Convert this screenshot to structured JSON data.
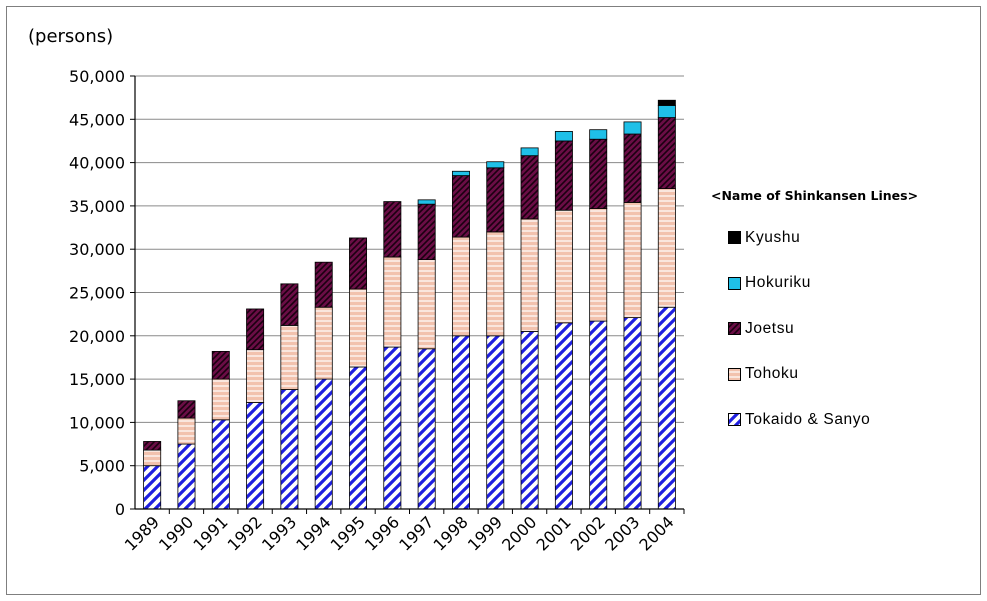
{
  "chart_data": {
    "type": "bar",
    "stacked": true,
    "unit_label": "(persons)",
    "title": "",
    "xlabel": "",
    "ylabel": "",
    "ylim": [
      0,
      50000
    ],
    "yticks": [
      "0",
      "5,000",
      "10,000",
      "15,000",
      "20,000",
      "25,000",
      "30,000",
      "35,000",
      "40,000",
      "45,000",
      "50,000"
    ],
    "grid": true,
    "legend_position": "right",
    "legend_title": "<Name of Shinkansen Lines>",
    "categories": [
      "1989",
      "1990",
      "1991",
      "1992",
      "1993",
      "1994",
      "1995",
      "1996",
      "1997",
      "1998",
      "1999",
      "2000",
      "2001",
      "2002",
      "2003",
      "2004"
    ],
    "series": [
      {
        "name": "Tokaido & Sanyo",
        "color": "#1f1fe0",
        "pattern": "diagonal-stripes",
        "values": [
          5000,
          7500,
          10300,
          12300,
          13800,
          15000,
          16400,
          18700,
          18500,
          20000,
          20000,
          20500,
          21500,
          21700,
          22100,
          23300
        ]
      },
      {
        "name": "Tohoku",
        "color": "#f2b8a0",
        "pattern": "horizontal-stripes",
        "values": [
          1800,
          3000,
          4700,
          6100,
          7400,
          8300,
          9000,
          10400,
          10300,
          11400,
          12000,
          13000,
          13000,
          13000,
          13300,
          13700
        ]
      },
      {
        "name": "Joetsu",
        "color": "#7a1050",
        "pattern": "dark-diagonal",
        "values": [
          1000,
          2000,
          3200,
          4700,
          4800,
          5200,
          5900,
          6400,
          6400,
          7100,
          7400,
          7300,
          8000,
          8000,
          7900,
          8200
        ]
      },
      {
        "name": "Hokuriku",
        "color": "#1fc0e8",
        "pattern": "solid",
        "values": [
          0,
          0,
          0,
          0,
          0,
          0,
          0,
          0,
          500,
          500,
          700,
          900,
          1100,
          1100,
          1400,
          1400
        ]
      },
      {
        "name": "Kyushu",
        "color": "#000000",
        "pattern": "solid",
        "values": [
          0,
          0,
          0,
          0,
          0,
          0,
          0,
          0,
          0,
          0,
          0,
          0,
          0,
          0,
          0,
          600
        ]
      }
    ],
    "legend_order": [
      "Kyushu",
      "Hokuriku",
      "Joetsu",
      "Tohoku",
      "Tokaido & Sanyo"
    ]
  }
}
